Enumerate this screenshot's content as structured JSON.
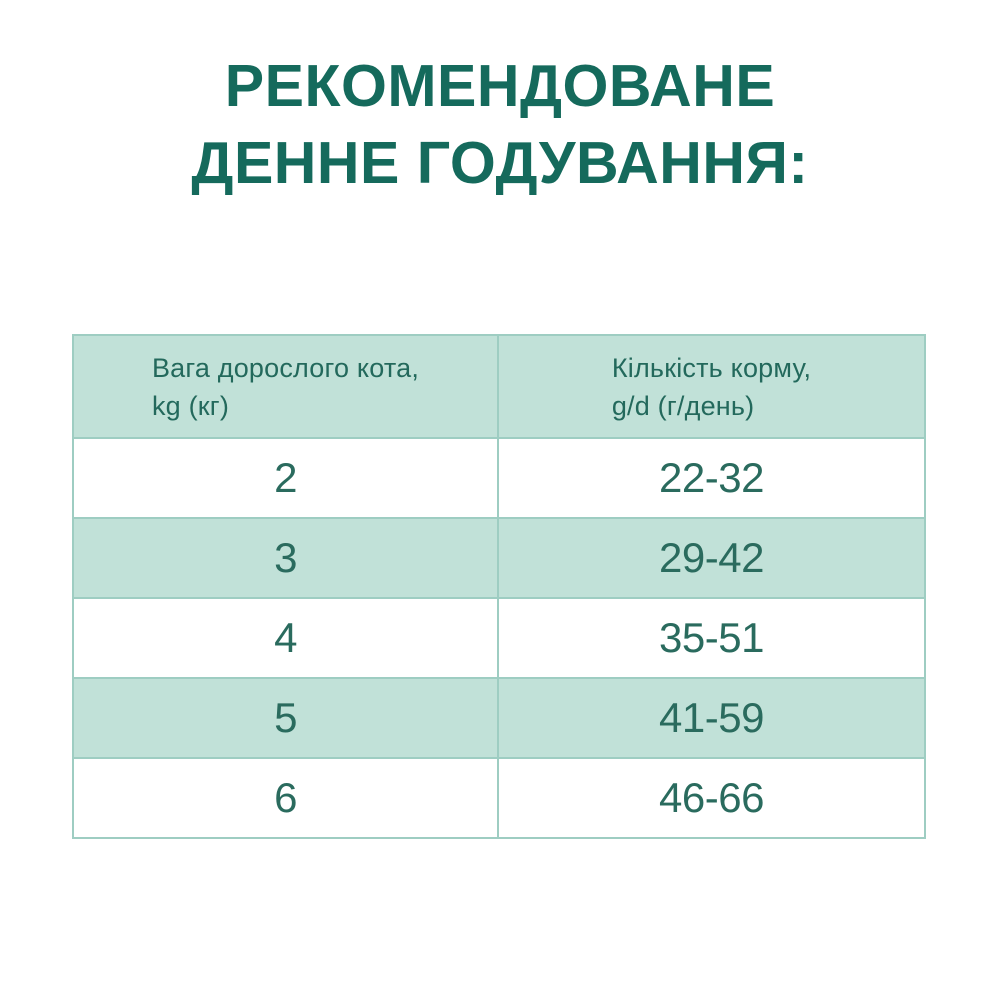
{
  "title": {
    "line1": "РЕКОМЕНДОВАНЕ",
    "line2": "ДЕННЕ ГОДУВАННЯ:"
  },
  "colors": {
    "title_text": "#156a5c",
    "table_text": "#2a6b5e",
    "mint_background": "#c1e1d8",
    "border": "#9ecdc2",
    "page_background": "#ffffff"
  },
  "table": {
    "headers": [
      {
        "line1": "Вага дорослого кота,",
        "line2": "kg (кг)"
      },
      {
        "line1": "Кількість корму,",
        "line2": "g/d (г/день)"
      }
    ],
    "rows": [
      {
        "weight": "2",
        "amount": "22-32"
      },
      {
        "weight": "3",
        "amount": "29-42"
      },
      {
        "weight": "4",
        "amount": "35-51"
      },
      {
        "weight": "5",
        "amount": "41-59"
      },
      {
        "weight": "6",
        "amount": "46-66"
      }
    ]
  }
}
